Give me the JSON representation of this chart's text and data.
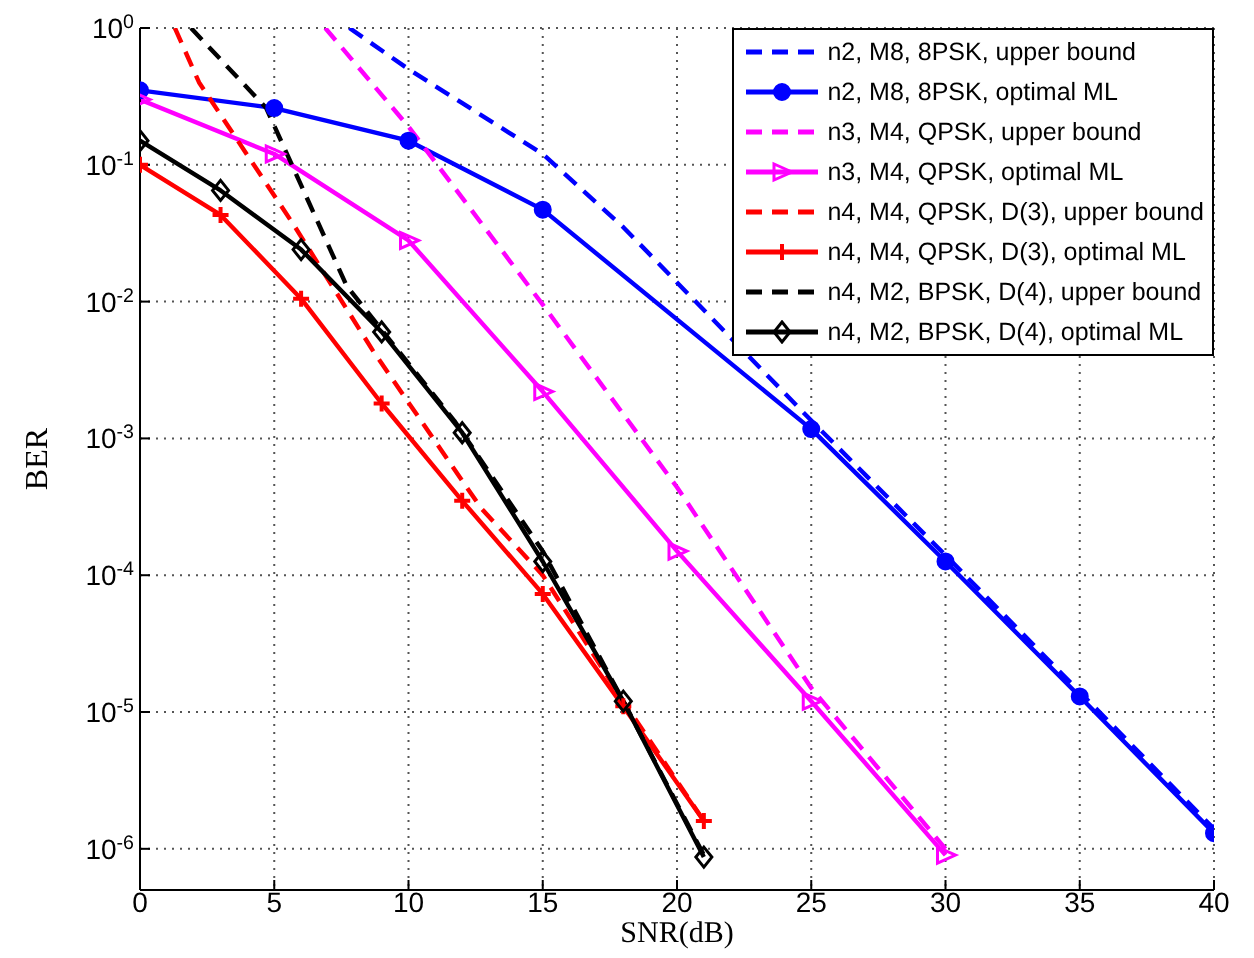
{
  "chart_data": {
    "type": "line",
    "xlabel": "SNR(dB)",
    "ylabel": "BER",
    "log": "y",
    "grid": true,
    "legend": "top right",
    "xlim": [
      0,
      40
    ],
    "xticks": [
      0,
      5,
      10,
      15,
      20,
      25,
      30,
      35,
      40
    ],
    "ylim": [
      5e-07,
      1
    ],
    "yticks": [
      {
        "value": 1,
        "label": "10$^{0}$"
      },
      {
        "value": 0.1,
        "label": "10$^{-1}$"
      },
      {
        "value": 0.01,
        "label": "10$^{-2}$"
      },
      {
        "value": 0.001,
        "label": "10$^{-3}$"
      },
      {
        "value": 0.0001,
        "label": "10$^{-4}$"
      },
      {
        "value": 1e-05,
        "label": "10$^{-5}$"
      },
      {
        "value": 1e-06,
        "label": "10$^{-6}$"
      }
    ],
    "series": [
      {
        "name": "n2, M8, 8PSK, upper bound",
        "color": "#0000ff",
        "line_style": "dashed",
        "marker": "none",
        "x": [
          7.8,
          10,
          15,
          18,
          25,
          30,
          35,
          40
        ],
        "values": [
          1,
          0.5,
          0.12,
          0.035,
          0.00135,
          0.00014,
          1.4e-05,
          1.4e-06
        ]
      },
      {
        "name": "n2, M8, 8PSK, optimal ML",
        "color": "#0000ff",
        "line_style": "solid",
        "marker": "circle",
        "x": [
          0,
          5,
          10,
          15,
          20,
          25,
          30,
          35,
          40
        ],
        "values": [
          0.35,
          0.26,
          0.15,
          0.047,
          null,
          0.00117,
          0.000126,
          1.3e-05,
          1.3e-06
        ]
      },
      {
        "name": "n3, M4, QPSK, upper bound",
        "color": "#ff00ff",
        "line_style": "dashed",
        "marker": "none",
        "x": [
          6.9,
          10,
          15,
          20,
          25,
          30
        ],
        "values": [
          1,
          0.19,
          0.0095,
          0.00044,
          1.5e-05,
          1e-06
        ]
      },
      {
        "name": "n3, M4, QPSK, optimal ML",
        "color": "#ff00ff",
        "line_style": "solid",
        "marker": "triangle",
        "x": [
          0,
          5,
          10,
          15,
          20,
          25,
          30
        ],
        "values": [
          0.3,
          0.12,
          0.028,
          0.0022,
          0.00015,
          1.2e-05,
          9e-07
        ]
      },
      {
        "name": "n4, M4, QPSK, D(3), upper bound",
        "color": "#ff0000",
        "line_style": "dashed",
        "marker": "none",
        "x": [
          1.3,
          2.2,
          5.7,
          8.7,
          12.7,
          15,
          18,
          21
        ],
        "values": [
          1,
          0.4,
          0.037,
          0.0043,
          0.00031,
          0.0001,
          1.2e-05,
          1.6e-06
        ]
      },
      {
        "name": "n4, M4, QPSK, D(3), optimal ML",
        "color": "#ff0000",
        "line_style": "solid",
        "marker": "cross",
        "x": [
          0,
          3,
          6,
          9,
          12,
          15,
          18,
          21
        ],
        "values": [
          0.1,
          0.043,
          0.0105,
          0.0018,
          0.00035,
          7.3e-05,
          1.1e-05,
          1.6e-06
        ]
      },
      {
        "name": "n4, M2, BPSK, D(4), upper bound",
        "color": "#000000",
        "line_style": "dashed",
        "marker": "none",
        "x": [
          1.9,
          4.7,
          7.7,
          11.7,
          15,
          18,
          21
        ],
        "values": [
          1,
          0.26,
          0.013,
          0.00135,
          0.00015,
          1.2e-05,
          9e-07
        ]
      },
      {
        "name": "n4, M2, BPSK, D(4), optimal ML",
        "color": "#000000",
        "line_style": "solid",
        "marker": "diamond",
        "x": [
          0,
          3,
          6,
          9,
          12,
          15,
          18,
          21
        ],
        "values": [
          0.15,
          0.065,
          0.024,
          0.006,
          0.0011,
          0.000126,
          1.2e-05,
          8.7e-07
        ]
      }
    ]
  }
}
